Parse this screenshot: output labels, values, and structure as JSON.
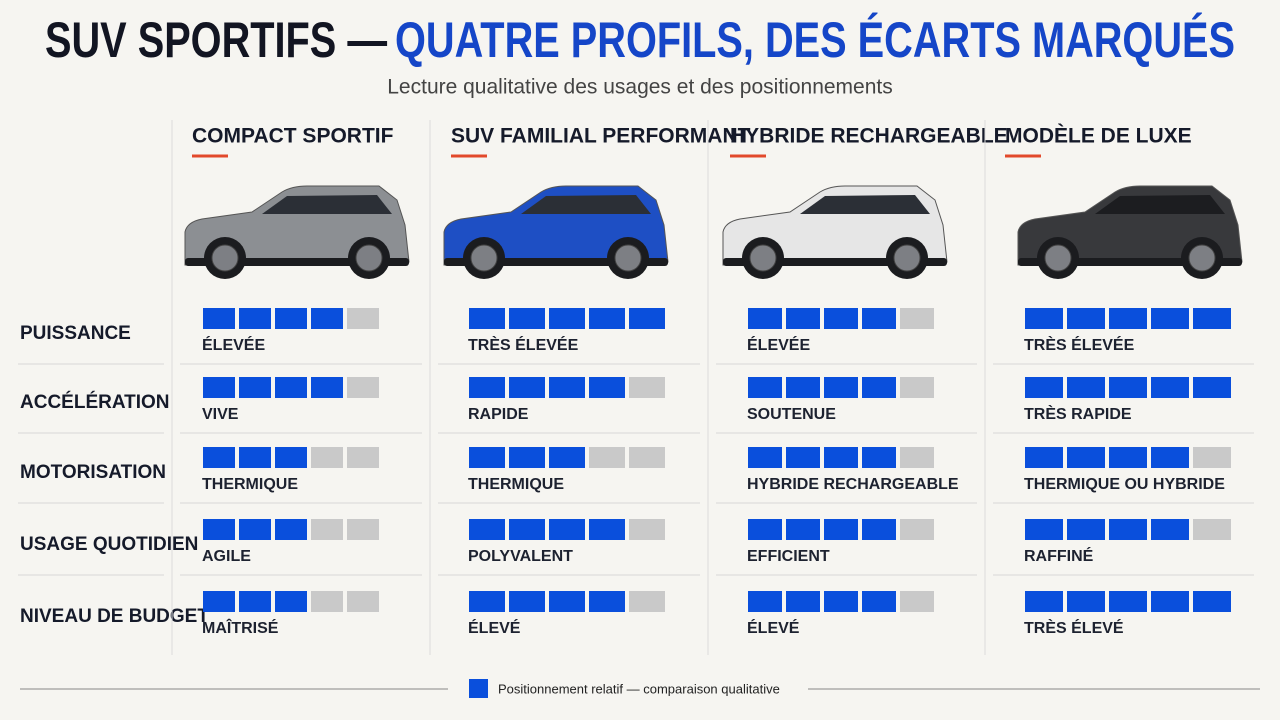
{
  "title": {
    "lead": "SUV SPORTIFS —",
    "rest": "QUATRE PROFILS, DES ÉCARTS MARQUÉS"
  },
  "subtitle": "Lecture qualitative des usages et des positionnements",
  "criteria": [
    "PUISSANCE",
    "ACCÉLÉRATION",
    "MOTORISATION",
    "USAGE QUOTIDIEN",
    "NIVEAU DE BUDGET"
  ],
  "scale_max": 5,
  "filled_color": "#0a4fdc",
  "empty_color": "#c9c9c9",
  "columns": [
    {
      "name": "COMPACT SPORTIF",
      "car_color": "#8c8f93",
      "ratings": [
        4,
        4,
        3,
        3,
        3
      ],
      "labels": [
        "ÉLEVÉE",
        "VIVE",
        "THERMIQUE",
        "AGILE",
        "MAÎTRISÉ"
      ]
    },
    {
      "name": "SUV FAMILIAL PERFORMANT",
      "car_color": "#1e4fc4",
      "ratings": [
        5,
        4,
        3,
        4,
        4
      ],
      "labels": [
        "TRÈS ÉLEVÉE",
        "RAPIDE",
        "THERMIQUE",
        "POLYVALENT",
        "ÉLEVÉ"
      ]
    },
    {
      "name": "HYBRIDE RECHARGEABLE",
      "car_color": "#e6e6e6",
      "ratings": [
        4,
        4,
        4,
        4,
        4
      ],
      "labels": [
        "ÉLEVÉE",
        "SOUTENUE",
        "HYBRIDE RECHARGEABLE",
        "EFFICIENT",
        "ÉLEVÉ"
      ]
    },
    {
      "name": "MODÈLE DE LUXE",
      "car_color": "#38393c",
      "ratings": [
        5,
        5,
        4,
        4,
        5
      ],
      "labels": [
        "TRÈS ÉLEVÉE",
        "TRÈS RAPIDE",
        "THERMIQUE OU HYBRIDE",
        "RAFFINÉ",
        "TRÈS ÉLEVÉ"
      ]
    }
  ],
  "legend": "Positionnement relatif — comparaison qualitative"
}
